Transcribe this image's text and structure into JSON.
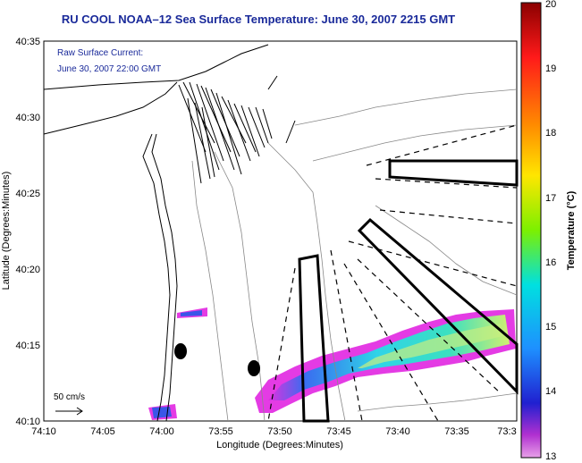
{
  "title": "RU COOL   NOAA–12  Sea Surface Temperature:  June 30, 2007 2215 GMT",
  "current_label": "Raw Surface Current:",
  "current_time": "June 30, 2007 22:00 GMT",
  "scale_label": "50 cm/s",
  "axes": {
    "xlabel": "Longitude (Degrees:Minutes)",
    "ylabel": "Latitude (Degrees:Minutes)",
    "x_ticks": [
      "74:10",
      "74:05",
      "74:00",
      "73:55",
      "73:50",
      "73:45",
      "73:40",
      "73:35",
      "73:3"
    ],
    "y_ticks": [
      "40:35",
      "40:30",
      "40:25",
      "40:20",
      "40:15",
      "40:10"
    ]
  },
  "colorbar": {
    "label": "Temperature (°C)",
    "ticks": [
      "20",
      "19",
      "18",
      "17",
      "16",
      "15",
      "14",
      "13"
    ],
    "min": 13,
    "max": 20
  }
}
